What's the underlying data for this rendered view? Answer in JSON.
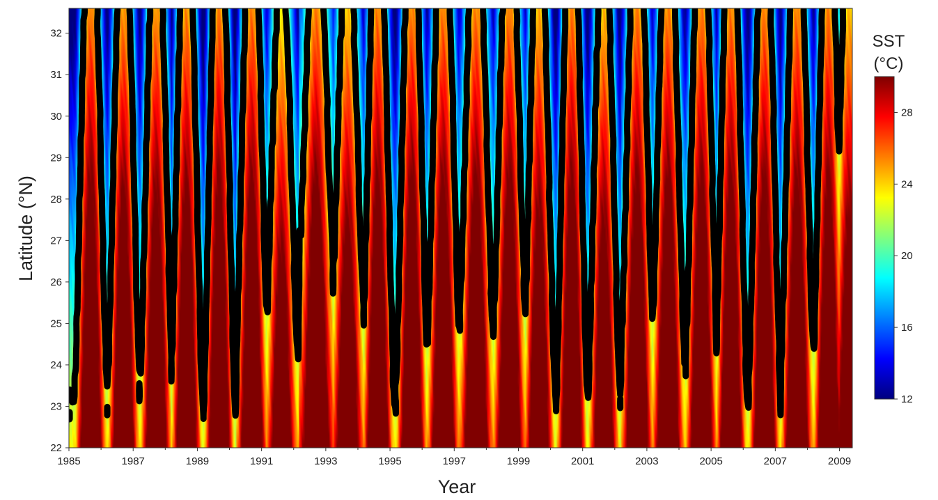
{
  "chart_data": {
    "type": "heatmap",
    "title": "",
    "xlabel": "Year",
    "ylabel": "Latitude (°N)",
    "xlim": [
      1985,
      2009.4
    ],
    "ylim": [
      22,
      32.6
    ],
    "x_ticks": [
      "1985",
      "1987",
      "1989",
      "1991",
      "1993",
      "1995",
      "1997",
      "1999",
      "2001",
      "2003",
      "2005",
      "2007",
      "2009"
    ],
    "x_tick_values": [
      1985,
      1987,
      1989,
      1991,
      1993,
      1995,
      1997,
      1999,
      2001,
      2003,
      2005,
      2007,
      2009
    ],
    "y_ticks": [
      "22",
      "23",
      "24",
      "25",
      "26",
      "27",
      "28",
      "29",
      "30",
      "31",
      "32"
    ],
    "y_tick_values": [
      22,
      23,
      24,
      25,
      26,
      27,
      28,
      29,
      30,
      31,
      32
    ],
    "colorbar": {
      "title_line1": "SST",
      "title_line2": "(°C)",
      "range": [
        12,
        30
      ],
      "ticks": [
        "12",
        "16",
        "20",
        "24",
        "28"
      ],
      "tick_values": [
        12,
        16,
        20,
        24,
        28
      ],
      "colormap": "jet",
      "colors": [
        "#00007f",
        "#0000ff",
        "#007fff",
        "#00ffff",
        "#7fff7f",
        "#ffff00",
        "#ff7f00",
        "#ff0000",
        "#7f0000"
      ]
    },
    "contour": {
      "level_c": 22,
      "color": "#000000"
    },
    "summer_peak_years": [
      1985.68,
      1986.7,
      1987.72,
      1988.66,
      1989.68,
      1990.7,
      1991.62,
      1992.7,
      1993.68,
      1994.62,
      1995.68,
      1996.66,
      1997.68,
      1998.72,
      1999.64,
      2000.66,
      2001.66,
      2002.7,
      2003.66,
      2004.7,
      2005.62,
      2006.66,
      2007.68,
      2008.66,
      2009.3
    ],
    "summer_reach_latitude": [
      32.6,
      32.3,
      32.3,
      32.4,
      32.6,
      32.6,
      30.8,
      32.6,
      31.5,
      32.6,
      32.6,
      32.6,
      32.6,
      32.6,
      31.8,
      32.6,
      31.6,
      32.6,
      32.6,
      32.6,
      32.6,
      32.6,
      32.6,
      32.6,
      31.6
    ],
    "winter_retreat_latitude": [
      23.2,
      23.3,
      23.5,
      22.9,
      22.4,
      23.8,
      24.2,
      27.0,
      25.0,
      23.3,
      23.2,
      24.4,
      25.3,
      24.8,
      23.2,
      22.5,
      22.9,
      24.3,
      24.3,
      23.9,
      23.2,
      23.1,
      24.1,
      23.1,
      24.6
    ]
  }
}
